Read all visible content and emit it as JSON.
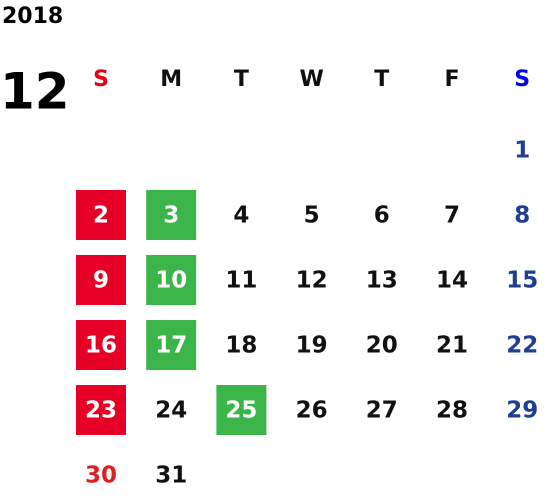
{
  "year": "2018",
  "month": "12",
  "weekdays": [
    "S",
    "M",
    "T",
    "W",
    "T",
    "F",
    "S"
  ],
  "box_colors": {
    "holiday": "#e60026",
    "event": "#3bb54a"
  },
  "weeks": [
    [
      null,
      null,
      null,
      null,
      null,
      null,
      {
        "day": 1
      }
    ],
    [
      {
        "day": 2,
        "box": "holiday"
      },
      {
        "day": 3,
        "box": "event"
      },
      {
        "day": 4
      },
      {
        "day": 5
      },
      {
        "day": 6
      },
      {
        "day": 7
      },
      {
        "day": 8
      }
    ],
    [
      {
        "day": 9,
        "box": "holiday"
      },
      {
        "day": 10,
        "box": "event"
      },
      {
        "day": 11
      },
      {
        "day": 12
      },
      {
        "day": 13
      },
      {
        "day": 14
      },
      {
        "day": 15
      }
    ],
    [
      {
        "day": 16,
        "box": "holiday"
      },
      {
        "day": 17,
        "box": "event"
      },
      {
        "day": 18
      },
      {
        "day": 19
      },
      {
        "day": 20
      },
      {
        "day": 21
      },
      {
        "day": 22
      }
    ],
    [
      {
        "day": 23,
        "box": "holiday"
      },
      {
        "day": 24
      },
      {
        "day": 25,
        "box": "event"
      },
      {
        "day": 26
      },
      {
        "day": 27
      },
      {
        "day": 28
      },
      {
        "day": 29
      }
    ],
    [
      {
        "day": 30
      },
      {
        "day": 31
      },
      null,
      null,
      null,
      null,
      null
    ]
  ]
}
